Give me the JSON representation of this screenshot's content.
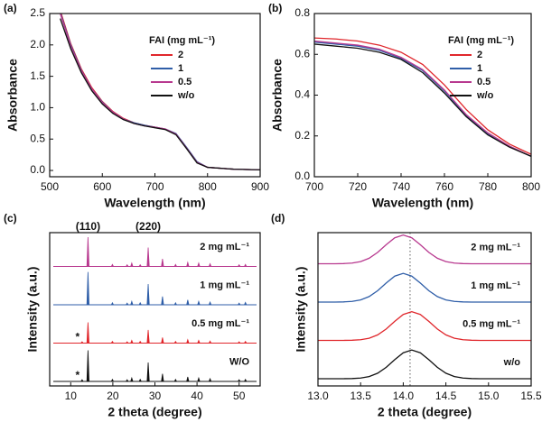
{
  "chart_data": [
    {
      "type": "line",
      "label": "(a)",
      "xlabel": "Wavelength (nm)",
      "ylabel": "Absorbance",
      "legend_title": "FAI  (mg mL⁻¹)",
      "x": [
        520,
        540,
        560,
        580,
        600,
        620,
        640,
        660,
        680,
        700,
        720,
        740,
        760,
        780,
        800,
        850,
        900
      ],
      "series": [
        {
          "name": "2",
          "color": "#e0262b",
          "values": [
            2.55,
            2.02,
            1.62,
            1.32,
            1.1,
            0.94,
            0.83,
            0.76,
            0.72,
            0.69,
            0.66,
            0.58,
            0.36,
            0.13,
            0.05,
            0.02,
            0.01
          ]
        },
        {
          "name": "1",
          "color": "#2f5ea8",
          "values": [
            2.52,
            2.0,
            1.6,
            1.3,
            1.09,
            0.93,
            0.82,
            0.76,
            0.72,
            0.69,
            0.66,
            0.59,
            0.37,
            0.14,
            0.05,
            0.02,
            0.01
          ]
        },
        {
          "name": "0.5",
          "color": "#b8398f",
          "values": [
            2.5,
            1.98,
            1.59,
            1.3,
            1.08,
            0.93,
            0.82,
            0.75,
            0.71,
            0.69,
            0.66,
            0.58,
            0.36,
            0.13,
            0.05,
            0.02,
            0.01
          ]
        },
        {
          "name": "w/o",
          "color": "#111111",
          "values": [
            2.42,
            1.94,
            1.56,
            1.27,
            1.06,
            0.91,
            0.81,
            0.75,
            0.71,
            0.68,
            0.65,
            0.57,
            0.35,
            0.12,
            0.05,
            0.02,
            0.01
          ]
        }
      ],
      "xlim": [
        500,
        900
      ],
      "xticks": [
        500,
        600,
        700,
        800,
        900
      ],
      "ylim": [
        -0.1,
        2.5
      ],
      "yticks": [
        {
          "value": 0,
          "label": "0.0"
        },
        0.5,
        {
          "value": 1,
          "label": "1.0"
        },
        1.5,
        {
          "value": 2,
          "label": "2.0"
        },
        2.5
      ]
    },
    {
      "type": "line",
      "label": "(b)",
      "xlabel": "Wavelength (nm)",
      "ylabel": "Absorbance",
      "legend_title": "FAI  (mg mL⁻¹)",
      "x": [
        700,
        710,
        720,
        730,
        740,
        750,
        760,
        770,
        780,
        790,
        800
      ],
      "series": [
        {
          "name": "2",
          "color": "#e0262b",
          "values": [
            0.68,
            0.675,
            0.665,
            0.645,
            0.61,
            0.55,
            0.45,
            0.33,
            0.23,
            0.16,
            0.11
          ]
        },
        {
          "name": "1",
          "color": "#2f5ea8",
          "values": [
            0.66,
            0.65,
            0.64,
            0.62,
            0.58,
            0.52,
            0.42,
            0.3,
            0.21,
            0.15,
            0.1
          ]
        },
        {
          "name": "0.5",
          "color": "#b8398f",
          "values": [
            0.665,
            0.655,
            0.645,
            0.625,
            0.585,
            0.525,
            0.425,
            0.305,
            0.215,
            0.15,
            0.1
          ]
        },
        {
          "name": "w/o",
          "color": "#111111",
          "values": [
            0.65,
            0.64,
            0.63,
            0.61,
            0.575,
            0.51,
            0.41,
            0.295,
            0.205,
            0.145,
            0.1
          ]
        }
      ],
      "xlim": [
        700,
        800
      ],
      "xticks": [
        700,
        720,
        740,
        760,
        780,
        800
      ],
      "ylim": [
        0,
        0.8
      ],
      "yticks": [
        {
          "value": 0,
          "label": "0.0"
        },
        0.2,
        0.4,
        0.6,
        0.8
      ]
    },
    {
      "type": "peaks",
      "label": "(c)",
      "xlabel": "2 theta (degree)",
      "ylabel": "Intensity (a.u.)",
      "annotations": [
        {
          "text": "(110)",
          "x": 14.1
        },
        {
          "text": "(220)",
          "x": 28.4
        }
      ],
      "x": [
        12.7,
        14.1,
        19.9,
        23.4,
        24.5,
        26.5,
        28.4,
        31.8,
        34.9,
        37.8,
        40.4,
        43.1,
        50.0,
        51.5
      ],
      "series": [
        {
          "name": "2 mg mL⁻¹",
          "color": "#b8398f",
          "values": [
            0,
            0.85,
            0.06,
            0.05,
            0.1,
            0.05,
            0.55,
            0.22,
            0.06,
            0.12,
            0.1,
            0.08,
            0.05,
            0.06
          ]
        },
        {
          "name": "1 mg mL⁻¹",
          "color": "#2f5ea8",
          "values": [
            0,
            0.95,
            0.06,
            0.05,
            0.1,
            0.06,
            0.6,
            0.24,
            0.06,
            0.14,
            0.1,
            0.08,
            0.05,
            0.07
          ]
        },
        {
          "name": "0.5 mg mL⁻¹",
          "color": "#e0262b",
          "marker": "*",
          "values": [
            0.04,
            0.6,
            0.05,
            0.04,
            0.08,
            0.05,
            0.38,
            0.16,
            0.05,
            0.1,
            0.08,
            0.06,
            0.04,
            0.05
          ]
        },
        {
          "name": "W/O",
          "color": "#111111",
          "marker": "*",
          "values": [
            0.05,
            0.9,
            0.06,
            0.05,
            0.1,
            0.06,
            0.55,
            0.22,
            0.06,
            0.13,
            0.1,
            0.08,
            0.05,
            0.06
          ]
        }
      ],
      "xlim": [
        5,
        55
      ],
      "xticks": [
        10,
        20,
        30,
        40,
        50
      ]
    },
    {
      "type": "waterfall",
      "label": "(d)",
      "xlabel": "2 theta (degree)",
      "ylabel": "Intensity (a.u.)",
      "vline": 14.08,
      "x": [
        13.0,
        13.1,
        13.2,
        13.3,
        13.4,
        13.5,
        13.6,
        13.7,
        13.8,
        13.9,
        14.0,
        14.1,
        14.2,
        14.3,
        14.4,
        14.5,
        14.6,
        14.7,
        14.8,
        14.9,
        15.0,
        15.1,
        15.2,
        15.3,
        15.4,
        15.5
      ],
      "series": [
        {
          "name": "2 mg mL⁻¹",
          "color": "#b8398f",
          "values": [
            0,
            0,
            0.001,
            0.006,
            0.024,
            0.076,
            0.192,
            0.395,
            0.662,
            0.902,
            1,
            0.902,
            0.662,
            0.395,
            0.192,
            0.076,
            0.024,
            0.006,
            0.001,
            0,
            0,
            0,
            0,
            0,
            0,
            0
          ]
        },
        {
          "name": "1 mg mL⁻¹",
          "color": "#2f5ea8",
          "values": [
            0,
            0,
            0.001,
            0.006,
            0.024,
            0.076,
            0.192,
            0.395,
            0.662,
            0.902,
            1,
            0.902,
            0.662,
            0.395,
            0.192,
            0.076,
            0.024,
            0.006,
            0.001,
            0,
            0,
            0,
            0,
            0,
            0,
            0
          ]
        },
        {
          "name": "0.5 mg mL⁻¹",
          "color": "#e0262b",
          "values": [
            0,
            0,
            0,
            0.001,
            0.006,
            0.024,
            0.076,
            0.192,
            0.395,
            0.662,
            0.902,
            1,
            0.902,
            0.662,
            0.395,
            0.192,
            0.076,
            0.024,
            0.006,
            0.001,
            0,
            0,
            0,
            0,
            0,
            0
          ]
        },
        {
          "name": "w/o",
          "color": "#111111",
          "values": [
            0,
            0,
            0,
            0.001,
            0.006,
            0.024,
            0.076,
            0.192,
            0.395,
            0.662,
            0.902,
            1,
            0.902,
            0.662,
            0.395,
            0.192,
            0.076,
            0.024,
            0.006,
            0.001,
            0,
            0,
            0,
            0,
            0,
            0
          ]
        }
      ],
      "xlim": [
        13.0,
        15.5
      ],
      "xticks": [
        {
          "value": 13,
          "label": "13.0"
        },
        13.5,
        {
          "value": 14,
          "label": "14.0"
        },
        14.5,
        {
          "value": 15,
          "label": "15.0"
        },
        15.5
      ]
    }
  ]
}
